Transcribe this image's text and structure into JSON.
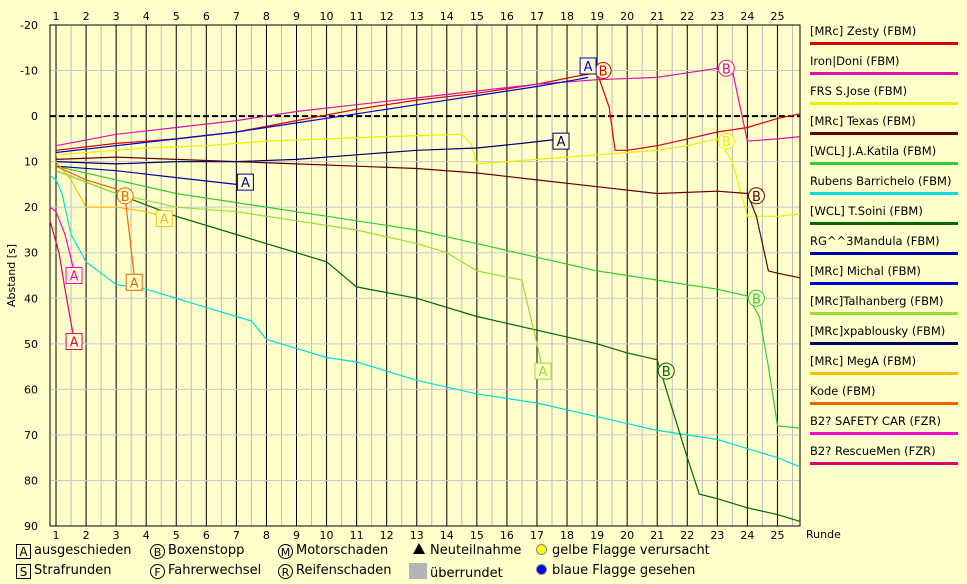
{
  "chart_data": {
    "type": "line",
    "ylabel": "Abstand [s]",
    "xlabel": "Runde",
    "x_ticks": [
      1,
      2,
      3,
      4,
      5,
      6,
      7,
      8,
      9,
      10,
      11,
      12,
      13,
      14,
      15,
      16,
      17,
      18,
      19,
      20,
      21,
      22,
      23,
      24,
      25
    ],
    "y_ticks": [
      -20,
      -10,
      0,
      10,
      20,
      30,
      40,
      50,
      60,
      70,
      80,
      90
    ],
    "ylim": [
      -20,
      90
    ],
    "xlim": [
      0.8,
      25.75
    ],
    "y_inverted": true,
    "grid": true,
    "legend_position": "right",
    "series": [
      {
        "name": "[MRc] Zesty (FBM)",
        "color": "#dd0000",
        "points": [
          [
            1,
            7.5
          ],
          [
            3,
            6
          ],
          [
            5,
            5
          ],
          [
            7,
            3.5
          ],
          [
            9,
            1
          ],
          [
            11,
            -1.5
          ],
          [
            13,
            -3.5
          ],
          [
            15,
            -5
          ],
          [
            17,
            -7
          ],
          [
            18.5,
            -9
          ],
          [
            19,
            -9.5
          ],
          [
            19.4,
            -2
          ],
          [
            19.6,
            7.5
          ],
          [
            20,
            7.5
          ],
          [
            21,
            6.5
          ],
          [
            22,
            5
          ],
          [
            23,
            3.5
          ],
          [
            24,
            2.5
          ],
          [
            25,
            0.5
          ],
          [
            25.75,
            -0.5
          ]
        ],
        "markers": [
          {
            "label": "B",
            "x": 19.2,
            "y": -10
          }
        ]
      },
      {
        "name": "Iron|Doni (FBM)",
        "color": "#dd11aa",
        "points": [
          [
            1,
            6.5
          ],
          [
            3,
            4
          ],
          [
            5,
            2.5
          ],
          [
            7,
            1
          ],
          [
            9,
            -1
          ],
          [
            11,
            -2.5
          ],
          [
            13,
            -4
          ],
          [
            15,
            -5.5
          ],
          [
            17,
            -7
          ],
          [
            19,
            -8
          ],
          [
            21,
            -8.5
          ],
          [
            22,
            -9.5
          ],
          [
            23,
            -10.5
          ],
          [
            23.5,
            -10
          ],
          [
            24,
            5.5
          ],
          [
            25,
            5
          ],
          [
            25.75,
            4.5
          ]
        ],
        "markers": [
          {
            "label": "B",
            "x": 23.3,
            "y": -10.5
          }
        ]
      },
      {
        "name": "FRS S.Jose (FBM)",
        "color": "#eeee00",
        "points": [
          [
            1,
            8.5
          ],
          [
            2,
            8
          ],
          [
            4,
            7
          ],
          [
            6,
            6.5
          ],
          [
            8,
            5.5
          ],
          [
            10,
            5
          ],
          [
            12,
            4.5
          ],
          [
            14.5,
            4
          ],
          [
            14.8,
            6
          ],
          [
            15,
            10.5
          ],
          [
            17,
            9.5
          ],
          [
            19,
            8.5
          ],
          [
            21,
            7.5
          ],
          [
            22,
            6.5
          ],
          [
            23,
            5
          ],
          [
            23.5,
            10
          ],
          [
            24,
            22
          ],
          [
            25,
            22
          ],
          [
            25.75,
            21.5
          ]
        ],
        "markers": [
          {
            "label": "B",
            "x": 23.3,
            "y": 5.5
          }
        ]
      },
      {
        "name": "[MRc] Texas (FBM)",
        "color": "#660000",
        "points": [
          [
            1,
            9.5
          ],
          [
            3,
            9
          ],
          [
            5,
            9.5
          ],
          [
            7,
            10
          ],
          [
            9,
            10.5
          ],
          [
            11,
            11
          ],
          [
            13,
            11.5
          ],
          [
            15,
            12.5
          ],
          [
            17,
            14
          ],
          [
            19,
            15.5
          ],
          [
            21,
            17
          ],
          [
            23,
            16.5
          ],
          [
            24,
            17
          ],
          [
            24.3,
            22
          ],
          [
            24.7,
            34
          ],
          [
            25,
            34.5
          ],
          [
            25.75,
            35.5
          ]
        ],
        "markers": [
          {
            "label": "B",
            "x": 24.3,
            "y": 17.5
          }
        ]
      },
      {
        "name": "[WCL] J.A.Katila (FBM)",
        "color": "#33cc33",
        "points": [
          [
            1,
            11
          ],
          [
            3,
            14
          ],
          [
            5,
            17
          ],
          [
            7,
            19
          ],
          [
            9,
            21
          ],
          [
            11,
            23
          ],
          [
            13,
            25
          ],
          [
            15,
            28
          ],
          [
            17,
            31
          ],
          [
            19,
            34
          ],
          [
            21,
            36
          ],
          [
            23,
            38
          ],
          [
            24,
            39.5
          ],
          [
            24.4,
            44
          ],
          [
            24.7,
            55
          ],
          [
            25,
            68
          ],
          [
            25.75,
            68.5
          ]
        ],
        "markers": [
          {
            "label": "B",
            "x": 24.3,
            "y": 40
          }
        ]
      },
      {
        "name": "Rubens Barrichelo (FBM)",
        "color": "#00dddd",
        "points": [
          [
            0.8,
            13
          ],
          [
            1,
            14
          ],
          [
            1.2,
            17
          ],
          [
            1.5,
            26
          ],
          [
            2,
            32
          ],
          [
            3,
            37
          ],
          [
            4,
            38
          ],
          [
            5,
            40
          ],
          [
            6,
            42
          ],
          [
            7,
            44
          ],
          [
            7.5,
            45
          ],
          [
            8,
            49
          ],
          [
            9,
            51
          ],
          [
            10,
            53
          ],
          [
            11,
            54
          ],
          [
            12,
            56
          ],
          [
            13,
            58
          ],
          [
            15,
            61
          ],
          [
            17,
            63
          ],
          [
            19,
            66
          ],
          [
            21,
            69
          ],
          [
            22,
            70
          ],
          [
            23,
            71
          ],
          [
            24,
            73
          ],
          [
            25,
            75
          ],
          [
            25.75,
            77
          ]
        ],
        "markers": []
      },
      {
        "name": "[WCL] T.Soini (FBM)",
        "color": "#006600",
        "points": [
          [
            1,
            12
          ],
          [
            3,
            17
          ],
          [
            5,
            22
          ],
          [
            7,
            26
          ],
          [
            9,
            30
          ],
          [
            10,
            32
          ],
          [
            11,
            37.5
          ],
          [
            13,
            40
          ],
          [
            15,
            44
          ],
          [
            17,
            47
          ],
          [
            19,
            50
          ],
          [
            20,
            52
          ],
          [
            21,
            53.5
          ],
          [
            21.3,
            60
          ],
          [
            22,
            75
          ],
          [
            22.4,
            83
          ],
          [
            23,
            84
          ],
          [
            24,
            86
          ],
          [
            25,
            87.5
          ],
          [
            25.75,
            89
          ]
        ],
        "markers": [
          {
            "label": "B",
            "x": 21.3,
            "y": 56
          }
        ]
      },
      {
        "name": "RG^^3Mandula (FBM)",
        "color": "#0000aa",
        "points": [
          [
            1,
            11
          ],
          [
            3,
            12
          ],
          [
            5,
            13.5
          ],
          [
            7,
            15
          ],
          [
            7.3,
            15.5
          ]
        ],
        "markers": [
          {
            "label": "A",
            "x": 7.3,
            "y": 14.5
          }
        ]
      },
      {
        "name": "[MRc] Michal (FBM)",
        "color": "#0000cc",
        "points": [
          [
            1,
            8
          ],
          [
            3,
            6.5
          ],
          [
            5,
            5
          ],
          [
            7,
            3.5
          ],
          [
            9,
            1.5
          ],
          [
            11,
            -0.5
          ],
          [
            13,
            -2.5
          ],
          [
            15,
            -4.5
          ],
          [
            17,
            -6.5
          ],
          [
            18.3,
            -8
          ],
          [
            18.7,
            -8.5
          ]
        ],
        "markers": [
          {
            "label": "A",
            "x": 18.7,
            "y": -11
          }
        ]
      },
      {
        "name": "[MRc]Talhanberg (FBM)",
        "color": "#99dd33",
        "points": [
          [
            1,
            12
          ],
          [
            3,
            17
          ],
          [
            5,
            20
          ],
          [
            7,
            21
          ],
          [
            9,
            23
          ],
          [
            11,
            25
          ],
          [
            13,
            28
          ],
          [
            14,
            30
          ],
          [
            15,
            34
          ],
          [
            16.5,
            36
          ],
          [
            17,
            50
          ],
          [
            17.2,
            56
          ]
        ],
        "markers": [
          {
            "label": "A",
            "x": 17.2,
            "y": 56
          }
        ]
      },
      {
        "name": "[MRc]xpablousky (FBM)",
        "color": "#000066",
        "points": [
          [
            1,
            10
          ],
          [
            3,
            10.5
          ],
          [
            5,
            10
          ],
          [
            7,
            10
          ],
          [
            9,
            9.5
          ],
          [
            11,
            8.5
          ],
          [
            13,
            7.5
          ],
          [
            15,
            7
          ],
          [
            16.5,
            6
          ],
          [
            17.8,
            5
          ]
        ],
        "markers": [
          {
            "label": "A",
            "x": 17.8,
            "y": 5.5
          }
        ]
      },
      {
        "name": "[MRc] MegA (FBM)",
        "color": "#ffbb00",
        "points": [
          [
            1,
            10
          ],
          [
            1.5,
            14
          ],
          [
            2,
            20
          ],
          [
            3,
            20
          ],
          [
            4,
            21
          ],
          [
            4.5,
            22
          ]
        ],
        "markers": [
          {
            "label": "A",
            "x": 4.6,
            "y": 22.5
          }
        ]
      },
      {
        "name": "Kode (FBM)",
        "color": "#ee6600",
        "points": [
          [
            1,
            11
          ],
          [
            2,
            14
          ],
          [
            3,
            16
          ],
          [
            3.3,
            18
          ],
          [
            3.6,
            35
          ]
        ],
        "markers": [
          {
            "label": "B",
            "x": 3.3,
            "y": 17.5
          },
          {
            "label": "A",
            "x": 3.6,
            "y": 36.5
          }
        ]
      },
      {
        "name": "B2? SAFETY CAR (FZR)",
        "color": "#ff00cc",
        "points": [
          [
            0.8,
            20
          ],
          [
            1,
            21
          ],
          [
            1.3,
            26
          ],
          [
            1.6,
            34
          ]
        ],
        "markers": [
          {
            "label": "A",
            "x": 1.6,
            "y": 35
          }
        ]
      },
      {
        "name": "B2? RescueMen (FZR)",
        "color": "#dd0066",
        "points": [
          [
            0.8,
            23
          ],
          [
            1.1,
            30
          ],
          [
            1.3,
            38
          ],
          [
            1.6,
            49
          ]
        ],
        "markers": [
          {
            "label": "A",
            "x": 1.6,
            "y": 49.5
          }
        ]
      }
    ]
  },
  "key": {
    "ausgeschieden": {
      "sym": "A",
      "label": "ausgeschieden"
    },
    "boxenstopp": {
      "sym": "B",
      "label": "Boxenstopp"
    },
    "motorschaden": {
      "sym": "M",
      "label": "Motorschaden"
    },
    "neuteilnahme": {
      "label": "Neuteilnahme"
    },
    "gelbe": {
      "label": "gelbe Flagge verursacht",
      "color": "#ffff00"
    },
    "strafrunden": {
      "sym": "S",
      "label": "Strafrunden"
    },
    "fahrerwechsel": {
      "sym": "F",
      "label": "Fahrerwechsel"
    },
    "reifenschaden": {
      "sym": "R",
      "label": "Reifenschaden"
    },
    "ueberrundet": {
      "label": "überrundet"
    },
    "blaue": {
      "label": "blaue Flagge gesehen",
      "color": "#0000ff"
    }
  }
}
